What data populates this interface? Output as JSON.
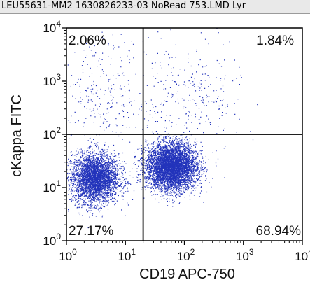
{
  "window": {
    "title": "LEU55631-MM2 1630826233-03 NoRead 753.LMD   Lyr"
  },
  "chart_data": {
    "type": "scatter",
    "title": "",
    "xlabel": "CD19 APC-750",
    "ylabel": "cKappa FITC",
    "xscale": "log",
    "yscale": "log",
    "xlim": [
      1,
      10000
    ],
    "ylim": [
      1,
      10000
    ],
    "x_ticks": [
      {
        "value": 1,
        "label_base": "10",
        "label_exp": "0"
      },
      {
        "value": 10,
        "label_base": "10",
        "label_exp": "1"
      },
      {
        "value": 100,
        "label_base": "10",
        "label_exp": "2"
      },
      {
        "value": 1000,
        "label_base": "10",
        "label_exp": "3"
      },
      {
        "value": 10000,
        "label_base": "10",
        "label_exp": "4"
      }
    ],
    "y_ticks": [
      {
        "value": 1,
        "label_base": "10",
        "label_exp": "0"
      },
      {
        "value": 10,
        "label_base": "10",
        "label_exp": "1"
      },
      {
        "value": 100,
        "label_base": "10",
        "label_exp": "2"
      },
      {
        "value": 1000,
        "label_base": "10",
        "label_exp": "3"
      },
      {
        "value": 10000,
        "label_base": "10",
        "label_exp": "4"
      }
    ],
    "quadrant_gates": {
      "x": 20,
      "y": 100
    },
    "quadrants": [
      {
        "position": "top-left",
        "label": "2.06%"
      },
      {
        "position": "top-right",
        "label": "1.84%"
      },
      {
        "position": "bottom-left",
        "label": "27.17%"
      },
      {
        "position": "bottom-right",
        "label": "68.94%"
      }
    ],
    "populations": [
      {
        "center_x": 3,
        "center_y": 15,
        "spread_log_x": 0.2,
        "spread_log_y": 0.23,
        "weight": 0.27
      },
      {
        "center_x": 60,
        "center_y": 25,
        "spread_log_x": 0.21,
        "spread_log_y": 0.22,
        "weight": 0.69
      },
      {
        "center_x": 4,
        "center_y": 600,
        "spread_log_x": 0.4,
        "spread_log_y": 0.55,
        "weight": 0.02
      },
      {
        "center_x": 120,
        "center_y": 500,
        "spread_log_x": 0.45,
        "spread_log_y": 0.55,
        "weight": 0.02
      }
    ],
    "point_color": "#2233bb",
    "grid": false
  }
}
